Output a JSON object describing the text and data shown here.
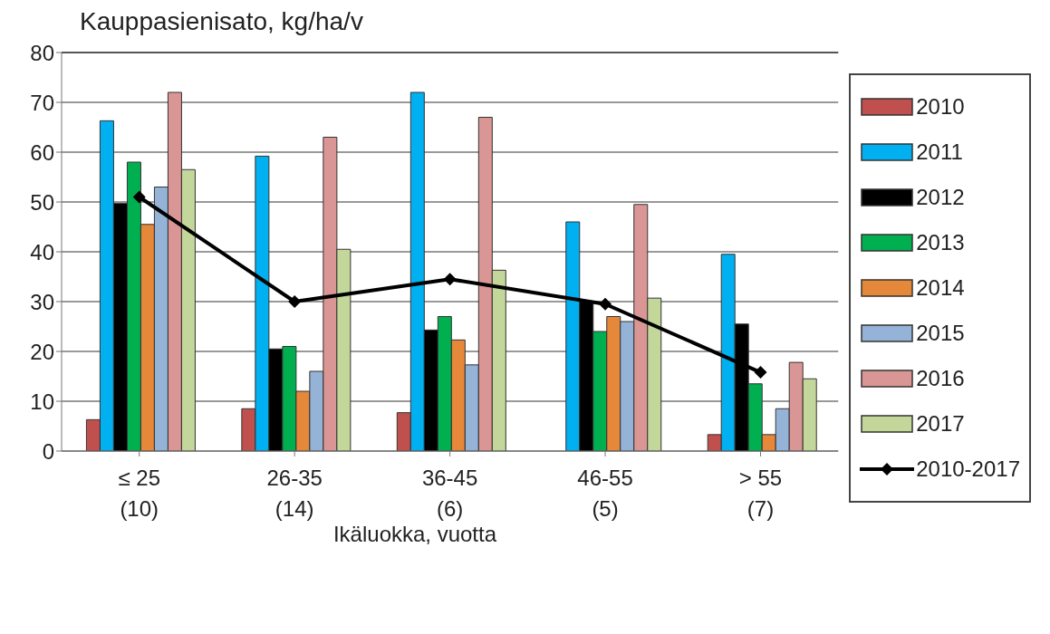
{
  "chart_data": {
    "type": "bar",
    "title": "Kauppasienisato, kg/ha/v",
    "xlabel": "Ikäluokka, vuotta",
    "categories": [
      "≤ 25\n(10)",
      "26-35\n(14)",
      "36-45\n(6)",
      "46-55\n(5)",
      "> 55\n(7)"
    ],
    "series": [
      {
        "name": "2010",
        "color": "#c0504d",
        "values": [
          6.3,
          8.5,
          7.7,
          null,
          3.3
        ]
      },
      {
        "name": "2011",
        "color": "#00b0f0",
        "values": [
          66.3,
          59.2,
          72,
          46,
          39.5
        ]
      },
      {
        "name": "2012",
        "color": "#000000",
        "values": [
          49.7,
          20.5,
          24.3,
          30,
          25.5
        ]
      },
      {
        "name": "2013",
        "color": "#00b050",
        "values": [
          58,
          21,
          27,
          24,
          13.5
        ]
      },
      {
        "name": "2014",
        "color": "#e6883a",
        "values": [
          45.5,
          12,
          22.3,
          27,
          3.3
        ]
      },
      {
        "name": "2015",
        "color": "#95b3d7",
        "values": [
          53,
          16,
          17.3,
          26,
          8.5
        ]
      },
      {
        "name": "2016",
        "color": "#da9694",
        "values": [
          72,
          63,
          67,
          49.5,
          17.8
        ]
      },
      {
        "name": "2017",
        "color": "#c4d79b",
        "values": [
          56.5,
          40.5,
          36.3,
          30.7,
          14.5
        ]
      },
      {
        "name": "2010-2017",
        "type": "line",
        "color": "#000000",
        "values": [
          51,
          30,
          34.5,
          29.5,
          15.8
        ]
      }
    ],
    "ylim": [
      0,
      80
    ],
    "yticks": [
      0,
      10,
      20,
      30,
      40,
      50,
      60,
      70,
      80
    ],
    "grid": "y",
    "legend": "right",
    "marker": "diamond",
    "line_style": "solid"
  }
}
